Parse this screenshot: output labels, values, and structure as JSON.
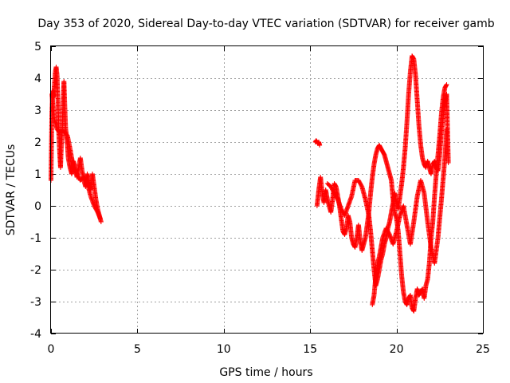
{
  "chart_data": {
    "type": "scatter",
    "title": "Day 353 of 2020, Sidereal Day-to-day VTEC variation (SDTVAR) for receiver gamb",
    "xlabel": "GPS time / hours",
    "ylabel": "SDTVAR / TECUs",
    "xlim": [
      0,
      25
    ],
    "ylim": [
      -4,
      5
    ],
    "x_ticks": [
      0,
      5,
      10,
      15,
      20,
      25
    ],
    "y_ticks": [
      -4,
      -3,
      -2,
      -1,
      0,
      1,
      2,
      3,
      4,
      5
    ],
    "grid": true,
    "marker": "+",
    "series": [
      {
        "name": "SDTVAR",
        "color": "#ff0000",
        "segments": [
          [
            [
              0.0,
              0.8
            ],
            [
              0.05,
              2.9
            ],
            [
              0.1,
              3.6
            ],
            [
              0.15,
              3.4
            ],
            [
              0.2,
              3.8
            ],
            [
              0.25,
              4.2
            ],
            [
              0.3,
              4.35
            ],
            [
              0.35,
              4.1
            ],
            [
              0.4,
              3.3
            ],
            [
              0.45,
              2.3
            ],
            [
              0.5,
              1.7
            ],
            [
              0.55,
              1.2
            ],
            [
              0.6,
              1.9
            ],
            [
              0.65,
              2.4
            ],
            [
              0.7,
              3.2
            ],
            [
              0.75,
              3.9
            ],
            [
              0.8,
              3.1
            ],
            [
              0.85,
              2.4
            ],
            [
              0.9,
              2.2
            ],
            [
              0.95,
              1.9
            ],
            [
              1.0,
              1.5
            ],
            [
              1.1,
              1.2
            ],
            [
              1.2,
              1.0
            ],
            [
              1.3,
              1.4
            ],
            [
              1.4,
              1.2
            ],
            [
              1.5,
              0.9
            ],
            [
              1.6,
              1.2
            ],
            [
              1.7,
              1.5
            ],
            [
              1.8,
              1.1
            ],
            [
              1.9,
              0.8
            ],
            [
              2.0,
              0.6
            ],
            [
              2.1,
              1.0
            ],
            [
              2.2,
              0.7
            ],
            [
              2.3,
              0.5
            ],
            [
              2.4,
              1.0
            ],
            [
              2.5,
              0.6
            ],
            [
              2.6,
              0.2
            ],
            [
              2.7,
              -0.1
            ],
            [
              2.8,
              -0.3
            ],
            [
              2.9,
              -0.5
            ]
          ],
          [
            [
              0.05,
              3.5
            ],
            [
              0.2,
              2.7
            ],
            [
              0.35,
              2.4
            ],
            [
              0.5,
              2.3
            ],
            [
              0.65,
              2.35
            ],
            [
              0.8,
              2.3
            ],
            [
              0.95,
              2.2
            ],
            [
              1.1,
              1.8
            ],
            [
              1.3,
              1.2
            ],
            [
              1.5,
              1.0
            ],
            [
              1.7,
              0.8
            ],
            [
              1.9,
              0.9
            ],
            [
              2.1,
              0.7
            ],
            [
              2.3,
              0.3
            ],
            [
              2.5,
              0.0
            ],
            [
              2.7,
              -0.2
            ],
            [
              2.85,
              -0.4
            ]
          ],
          [
            [
              15.3,
              2.0
            ],
            [
              15.35,
              2.05
            ],
            [
              15.4,
              2.0
            ],
            [
              15.45,
              1.95
            ],
            [
              15.5,
              2.0
            ],
            [
              15.55,
              1.9
            ]
          ],
          [
            [
              15.4,
              0.0
            ],
            [
              15.5,
              0.5
            ],
            [
              15.6,
              0.9
            ],
            [
              15.7,
              0.4
            ],
            [
              15.8,
              0.1
            ],
            [
              15.9,
              0.5
            ],
            [
              16.0,
              0.2
            ],
            [
              16.1,
              0.0
            ],
            [
              16.2,
              -0.2
            ],
            [
              16.3,
              0.2
            ],
            [
              16.4,
              0.7
            ],
            [
              16.5,
              0.6
            ],
            [
              16.6,
              0.3
            ],
            [
              16.7,
              0.0
            ],
            [
              16.8,
              -0.4
            ],
            [
              16.9,
              -0.8
            ],
            [
              17.0,
              -0.9
            ],
            [
              17.1,
              -0.7
            ],
            [
              17.2,
              -0.3
            ],
            [
              17.3,
              -0.5
            ],
            [
              17.4,
              -1.0
            ],
            [
              17.5,
              -1.2
            ],
            [
              17.6,
              -1.3
            ],
            [
              17.7,
              -1.0
            ],
            [
              17.8,
              -0.6
            ],
            [
              17.9,
              -1.1
            ],
            [
              18.0,
              -1.4
            ],
            [
              18.1,
              -1.2
            ],
            [
              18.2,
              -1.0
            ],
            [
              18.3,
              -0.6
            ],
            [
              18.4,
              -0.2
            ],
            [
              18.5,
              0.4
            ],
            [
              18.6,
              0.9
            ],
            [
              18.7,
              1.3
            ],
            [
              18.8,
              1.6
            ],
            [
              18.9,
              1.8
            ],
            [
              19.0,
              1.9
            ],
            [
              19.1,
              1.8
            ],
            [
              19.2,
              1.7
            ],
            [
              19.3,
              1.6
            ],
            [
              19.4,
              1.4
            ],
            [
              19.5,
              1.2
            ],
            [
              19.6,
              1.0
            ],
            [
              19.7,
              0.8
            ],
            [
              19.8,
              0.2
            ],
            [
              19.9,
              -0.2
            ],
            [
              20.0,
              -0.4
            ],
            [
              20.1,
              -0.8
            ],
            [
              20.2,
              -1.5
            ],
            [
              20.3,
              -2.2
            ],
            [
              20.4,
              -2.7
            ],
            [
              20.5,
              -3.0
            ],
            [
              20.6,
              -3.1
            ],
            [
              20.7,
              -2.9
            ],
            [
              20.8,
              -2.8
            ],
            [
              20.9,
              -3.2
            ],
            [
              21.0,
              -3.3
            ],
            [
              21.1,
              -2.9
            ],
            [
              21.2,
              -2.6
            ],
            [
              21.3,
              -2.8
            ],
            [
              21.4,
              -2.7
            ],
            [
              21.5,
              -2.6
            ],
            [
              21.6,
              -2.9
            ],
            [
              21.7,
              -2.5
            ],
            [
              21.8,
              -2.3
            ],
            [
              21.9,
              -1.8
            ],
            [
              22.0,
              -1.0
            ],
            [
              22.1,
              -0.5
            ],
            [
              22.2,
              0.3
            ],
            [
              22.3,
              1.0
            ],
            [
              22.4,
              1.6
            ],
            [
              22.5,
              2.2
            ],
            [
              22.6,
              2.9
            ],
            [
              22.7,
              3.4
            ],
            [
              22.8,
              3.7
            ],
            [
              22.9,
              3.8
            ]
          ],
          [
            [
              16.0,
              0.7
            ],
            [
              16.2,
              0.6
            ],
            [
              16.4,
              0.4
            ],
            [
              16.6,
              0.2
            ],
            [
              16.8,
              -0.1
            ],
            [
              17.0,
              -0.3
            ],
            [
              17.2,
              0.0
            ],
            [
              17.4,
              0.3
            ],
            [
              17.6,
              0.8
            ],
            [
              17.8,
              0.8
            ],
            [
              18.0,
              0.6
            ],
            [
              18.2,
              0.2
            ],
            [
              18.4,
              -0.3
            ],
            [
              18.5,
              -0.8
            ],
            [
              18.6,
              -1.4
            ],
            [
              18.7,
              -2.0
            ],
            [
              18.8,
              -2.5
            ],
            [
              18.9,
              -2.3
            ],
            [
              19.0,
              -2.0
            ],
            [
              19.1,
              -1.7
            ],
            [
              19.2,
              -1.5
            ],
            [
              19.3,
              -1.2
            ],
            [
              19.4,
              -1.0
            ],
            [
              19.5,
              -0.7
            ],
            [
              19.6,
              -0.5
            ],
            [
              19.7,
              -0.2
            ],
            [
              19.8,
              0.1
            ],
            [
              19.9,
              0.4
            ],
            [
              20.0,
              0.1
            ],
            [
              20.1,
              -0.1
            ],
            [
              20.2,
              0.3
            ],
            [
              20.3,
              0.7
            ],
            [
              20.4,
              1.2
            ],
            [
              20.5,
              1.8
            ],
            [
              20.6,
              2.6
            ],
            [
              20.7,
              3.5
            ],
            [
              20.8,
              4.2
            ],
            [
              20.9,
              4.7
            ],
            [
              21.0,
              4.6
            ],
            [
              21.1,
              4.1
            ],
            [
              21.2,
              3.3
            ],
            [
              21.3,
              2.5
            ],
            [
              21.4,
              1.9
            ],
            [
              21.5,
              1.5
            ],
            [
              21.6,
              1.3
            ],
            [
              21.7,
              1.2
            ],
            [
              21.8,
              1.4
            ],
            [
              21.9,
              1.2
            ],
            [
              22.0,
              1.0
            ],
            [
              22.1,
              1.3
            ],
            [
              22.2,
              1.4
            ],
            [
              22.3,
              1.2
            ],
            [
              22.4,
              1.1
            ],
            [
              22.5,
              1.6
            ],
            [
              22.6,
              2.3
            ],
            [
              22.7,
              2.8
            ],
            [
              22.8,
              3.2
            ],
            [
              22.9,
              3.5
            ],
            [
              23.0,
              1.35
            ]
          ],
          [
            [
              18.6,
              -3.1
            ],
            [
              18.7,
              -2.8
            ],
            [
              18.8,
              -2.2
            ],
            [
              18.9,
              -1.8
            ],
            [
              19.0,
              -1.6
            ],
            [
              19.1,
              -1.3
            ],
            [
              19.2,
              -1.0
            ],
            [
              19.4,
              -0.7
            ],
            [
              19.6,
              -0.9
            ],
            [
              19.8,
              -1.2
            ],
            [
              20.0,
              -0.8
            ],
            [
              20.2,
              -0.3
            ],
            [
              20.4,
              0.0
            ],
            [
              20.6,
              -0.6
            ],
            [
              20.8,
              -1.2
            ],
            [
              21.0,
              -0.5
            ],
            [
              21.2,
              0.3
            ],
            [
              21.4,
              0.8
            ],
            [
              21.6,
              0.4
            ],
            [
              21.8,
              -0.5
            ],
            [
              22.0,
              -1.3
            ],
            [
              22.2,
              -1.8
            ],
            [
              22.4,
              -1.0
            ],
            [
              22.6,
              0.2
            ],
            [
              22.8,
              1.5
            ],
            [
              22.9,
              2.4
            ]
          ]
        ]
      }
    ]
  }
}
